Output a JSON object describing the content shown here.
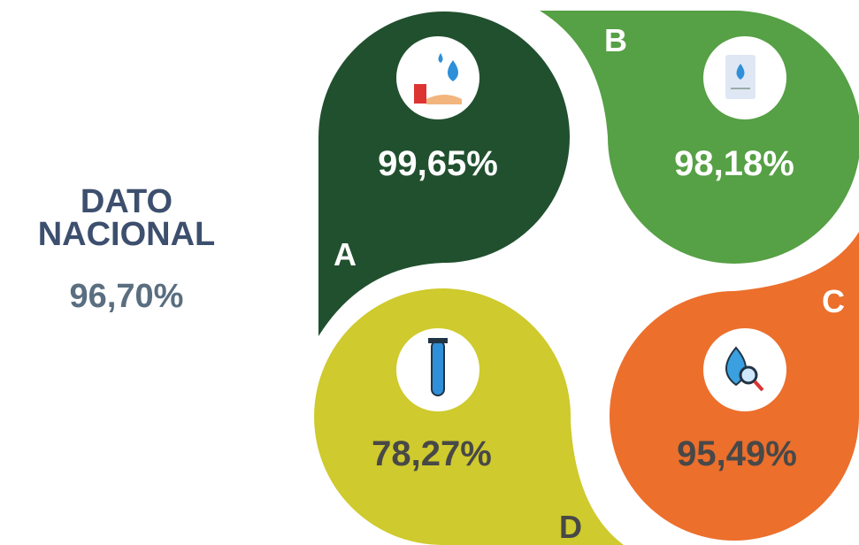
{
  "national": {
    "title_lines": [
      "DATO",
      "NACIONAL"
    ],
    "value": "96,70%"
  },
  "segments": [
    {
      "letter": "A",
      "value": "99,65%"
    },
    {
      "letter": "B",
      "value": "98,18%"
    },
    {
      "letter": "C",
      "value": "95,49%"
    },
    {
      "letter": "D",
      "value": "78,27%"
    }
  ]
}
